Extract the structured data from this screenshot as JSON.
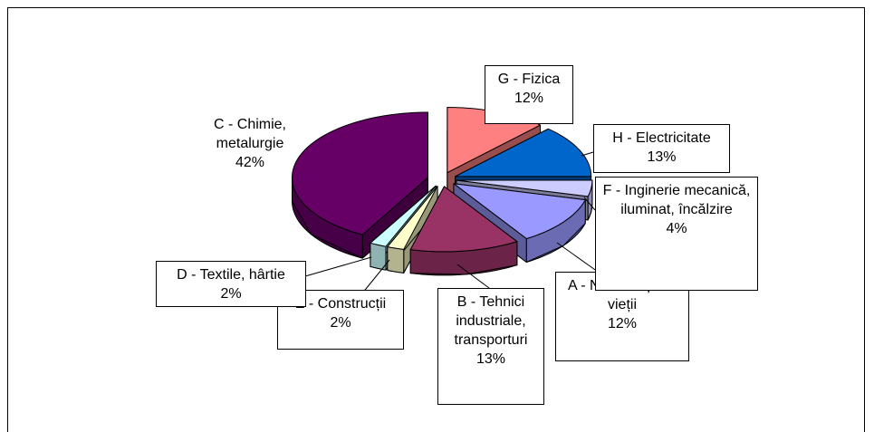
{
  "chart_data": {
    "type": "pie3d",
    "categories": [
      "G - Fizica",
      "H - Electricitate",
      "F - Inginerie mecanică, iluminat, încălzire",
      "A - Necesități ale vieții",
      "B - Tehnici industriale, transporturi",
      "E - Construcții",
      "D - Textile, hârtie",
      "C - Chimie, metalurgie"
    ],
    "values": [
      12,
      13,
      4,
      12,
      13,
      2,
      2,
      42
    ],
    "value_labels": [
      "12%",
      "13%",
      "4%",
      "12%",
      "13%",
      "2%",
      "2%",
      "42%"
    ],
    "colors": [
      "#ff8080",
      "#0066cc",
      "#ccccff",
      "#9999ff",
      "#993366",
      "#ffffcc",
      "#ccffff",
      "#660066"
    ]
  }
}
